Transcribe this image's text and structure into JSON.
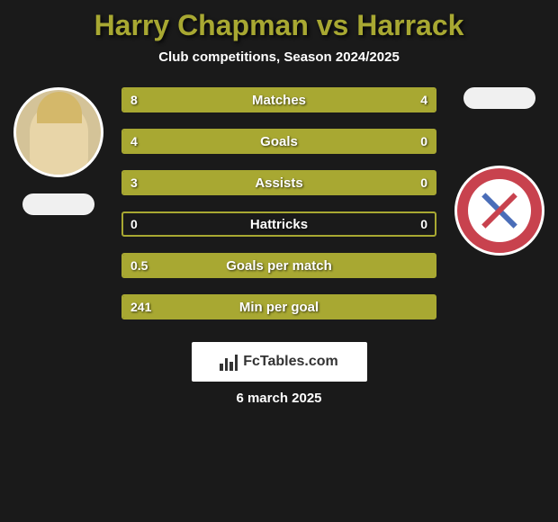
{
  "title": "Harry Chapman vs Harrack",
  "subtitle": "Club competitions, Season 2024/2025",
  "date": "6 march 2025",
  "footer_brand": "FcTables.com",
  "colors": {
    "accent": "#a8a832",
    "background": "#1a1a1a",
    "badge_bg": "#c8424e",
    "text": "#ffffff"
  },
  "bars": [
    {
      "label": "Matches",
      "left_val": "8",
      "right_val": "4",
      "left_pct": 66.67,
      "right_pct": 33.33
    },
    {
      "label": "Goals",
      "left_val": "4",
      "right_val": "0",
      "left_pct": 100,
      "right_pct": 0
    },
    {
      "label": "Assists",
      "left_val": "3",
      "right_val": "0",
      "left_pct": 100,
      "right_pct": 0
    },
    {
      "label": "Hattricks",
      "left_val": "0",
      "right_val": "0",
      "left_pct": 0,
      "right_pct": 0
    },
    {
      "label": "Goals per match",
      "left_val": "0.5",
      "right_val": "",
      "left_pct": 100,
      "right_pct": 0
    },
    {
      "label": "Min per goal",
      "left_val": "241",
      "right_val": "",
      "left_pct": 100,
      "right_pct": 0
    }
  ]
}
